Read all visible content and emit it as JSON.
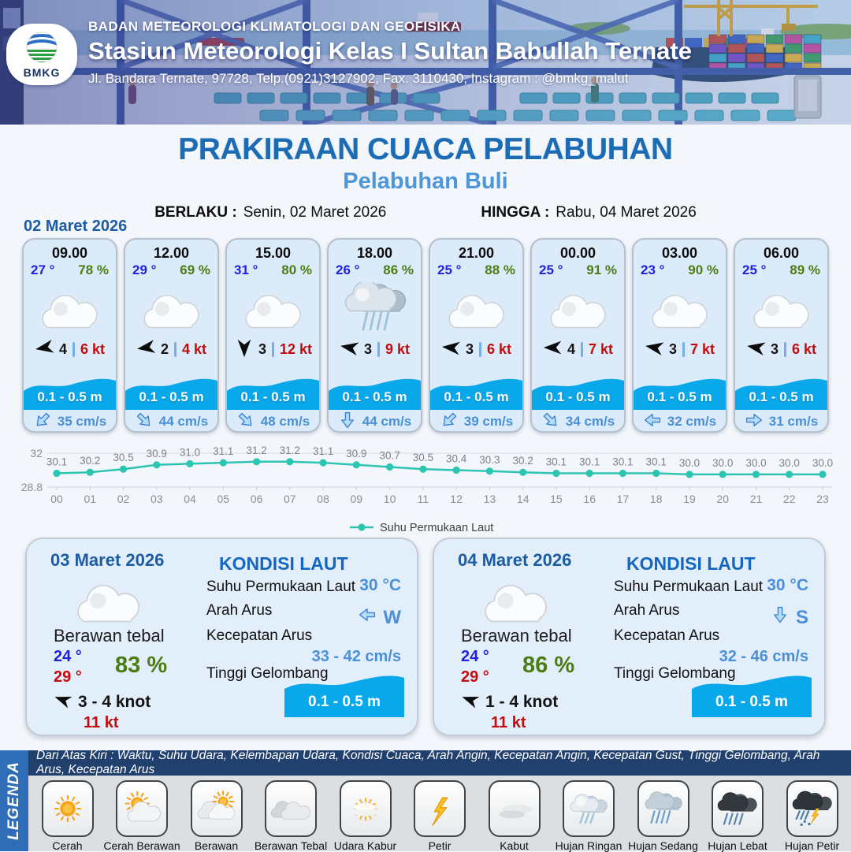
{
  "header": {
    "org": "BADAN METEOROLOGI KLIMATOLOGI DAN GEOFISIKA",
    "station": "Stasiun Meteorologi Kelas I Sultan Babullah Ternate",
    "address": "Jl. Bandara Ternate, 97728, Telp.(0921)3127902, Fax. 3110430, Instagram : @bmkg_malut",
    "logo_text": "BMKG"
  },
  "title": {
    "main": "PRAKIRAAN CUACA PELABUHAN",
    "port": "Pelabuhan Buli",
    "valid_label": "BERLAKU :",
    "valid_value": "Senin, 02 Maret 2026",
    "until_label": "HINGGA :",
    "until_value": "Rabu, 04 Maret 2026"
  },
  "hourly": {
    "date": "02 Maret 2026",
    "cards": [
      {
        "time": "09.00",
        "temp": "27 °",
        "humidity": "78 %",
        "icon": "berawan",
        "wind_deg": 170,
        "wind_beaufort": "4",
        "wind_speed": "6 kt",
        "wave_height": "0.1 - 0.5 m",
        "current_deg": 135,
        "current_speed": "35 cm/s"
      },
      {
        "time": "12.00",
        "temp": "29 °",
        "humidity": "69 %",
        "icon": "berawan",
        "wind_deg": 172,
        "wind_beaufort": "2",
        "wind_speed": "4 kt",
        "wave_height": "0.1 - 0.5 m",
        "current_deg": 45,
        "current_speed": "44 cm/s"
      },
      {
        "time": "15.00",
        "temp": "31 °",
        "humidity": "80 %",
        "icon": "berawan",
        "wind_deg": 90,
        "wind_beaufort": "3",
        "wind_speed": "12 kt",
        "wave_height": "0.1 - 0.5 m",
        "current_deg": 45,
        "current_speed": "48 cm/s"
      },
      {
        "time": "18.00",
        "temp": "26 °",
        "humidity": "86 %",
        "icon": "hujan-ringan",
        "wind_deg": 190,
        "wind_beaufort": "3",
        "wind_speed": "9 kt",
        "wave_height": "0.1 - 0.5 m",
        "current_deg": 90,
        "current_speed": "44 cm/s"
      },
      {
        "time": "21.00",
        "temp": "25 °",
        "humidity": "88 %",
        "icon": "berawan",
        "wind_deg": 185,
        "wind_beaufort": "3",
        "wind_speed": "6 kt",
        "wave_height": "0.1 - 0.5 m",
        "current_deg": 135,
        "current_speed": "39 cm/s"
      },
      {
        "time": "00.00",
        "temp": "25 °",
        "humidity": "91 %",
        "icon": "berawan",
        "wind_deg": 180,
        "wind_beaufort": "4",
        "wind_speed": "7 kt",
        "wave_height": "0.1 - 0.5 m",
        "current_deg": 45,
        "current_speed": "34 cm/s"
      },
      {
        "time": "03.00",
        "temp": "23 °",
        "humidity": "90 %",
        "icon": "berawan",
        "wind_deg": 190,
        "wind_beaufort": "3",
        "wind_speed": "7 kt",
        "wave_height": "0.1 - 0.5 m",
        "current_deg": 180,
        "current_speed": "32 cm/s"
      },
      {
        "time": "06.00",
        "temp": "25 °",
        "humidity": "89 %",
        "icon": "berawan",
        "wind_deg": 190,
        "wind_beaufort": "3",
        "wind_speed": "6 kt",
        "wave_height": "0.1 - 0.5 m",
        "current_deg": 0,
        "current_speed": "31 cm/s"
      }
    ]
  },
  "chart_data": {
    "type": "line",
    "x": [
      "00",
      "01",
      "02",
      "03",
      "04",
      "05",
      "06",
      "07",
      "08",
      "09",
      "10",
      "11",
      "12",
      "13",
      "14",
      "15",
      "16",
      "17",
      "18",
      "19",
      "20",
      "21",
      "22",
      "23"
    ],
    "series": [
      {
        "name": "Suhu Permukaan Laut",
        "values": [
          30.1,
          30.2,
          30.5,
          30.9,
          31.0,
          31.1,
          31.2,
          31.2,
          31.1,
          30.9,
          30.7,
          30.5,
          30.4,
          30.3,
          30.2,
          30.1,
          30.1,
          30.1,
          30.1,
          30.0,
          30.0,
          30.0,
          30.0,
          30.0
        ]
      }
    ],
    "ylim": [
      28.8,
      32
    ],
    "yticks": [
      "32",
      "28.8"
    ],
    "line_color": "#2cc5b2",
    "label_color": "#7d838a",
    "legend_position": "bottom",
    "grid": "top-and-bottom-only"
  },
  "days": [
    {
      "date": "03 Maret 2026",
      "icon": "berawan-tebal",
      "condition": "Berawan tebal",
      "temp_min": "24 °",
      "temp_max": "29 °",
      "humidity": "83 %",
      "wind_deg": 200,
      "wind_range": "3 - 4 knot",
      "gust": "11 kt",
      "sea_title": "KONDISI LAUT",
      "sst_label": "Suhu Permukaan Laut",
      "sst": "30 °C",
      "current_dir_label": "Arah Arus",
      "current_dir": "W",
      "current_dir_deg": 180,
      "current_speed_label": "Kecepatan Arus",
      "current_speed": "33 - 42 cm/s",
      "wave_label": "Tinggi Gelombang",
      "wave_height": "0.1 - 0.5 m"
    },
    {
      "date": "04 Maret 2026",
      "icon": "berawan-tebal",
      "condition": "Berawan tebal",
      "temp_min": "24 °",
      "temp_max": "29 °",
      "humidity": "86 %",
      "wind_deg": 200,
      "wind_range": "1 - 4 knot",
      "gust": "11 kt",
      "sea_title": "KONDISI LAUT",
      "sst_label": "Suhu Permukaan Laut",
      "sst": "30 °C",
      "current_dir_label": "Arah Arus",
      "current_dir": "S",
      "current_dir_deg": 90,
      "current_speed_label": "Kecepatan Arus",
      "current_speed": "32 - 46 cm/s",
      "wave_label": "Tinggi Gelombang",
      "wave_height": "0.1 - 0.5 m"
    }
  ],
  "legend": {
    "band": "LEGENDA",
    "note": "Dari Atas Kiri : Waktu, Suhu Udara, Kelembapan Udara, Kondisi Cuaca, Arah Angin, Kecepatan Angin, Kecepatan Gust, Tinggi Gelombang, Arah Arus, Kecepatan Arus",
    "items": [
      {
        "label": "Cerah",
        "icon": "cerah"
      },
      {
        "label": "Cerah Berawan",
        "icon": "cerah-berawan"
      },
      {
        "label": "Berawan",
        "icon": "berawan"
      },
      {
        "label": "Berawan Tebal",
        "icon": "berawan-tebal"
      },
      {
        "label": "Udara Kabur",
        "icon": "udara-kabur"
      },
      {
        "label": "Petir",
        "icon": "petir"
      },
      {
        "label": "Kabut",
        "icon": "kabut"
      },
      {
        "label": "Hujan Ringan",
        "icon": "hujan-ringan"
      },
      {
        "label": "Hujan Sedang",
        "icon": "hujan-sedang"
      },
      {
        "label": "Hujan Lebat",
        "icon": "hujan-lebat"
      },
      {
        "label": "Hujan Petir",
        "icon": "hujan-petir"
      }
    ]
  },
  "colors": {
    "title_blue": "#1b6cb5",
    "port_blue": "#4e96d8",
    "date_blue": "#1b5ca5",
    "temp_blue": "#2121dd",
    "humidity_green": "#4c7d12",
    "wind_red": "#c40b0b",
    "wave_blue": "#09a8ea",
    "current_text_blue": "#4a8fd6",
    "chart_teal": "#2cc5b2",
    "legend_band_blue": "#2f6eb6",
    "legend_note_navy": "#21406e"
  }
}
